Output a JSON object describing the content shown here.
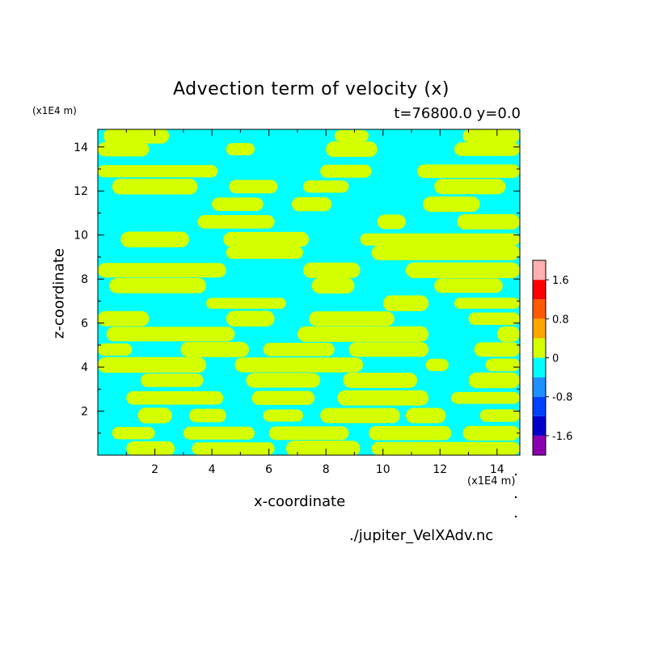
{
  "chart_data": {
    "type": "heatmap",
    "title": "Advection term of velocity (x)",
    "subtitle": "t=76800.0 y=0.0",
    "xlabel": "x-coordinate",
    "ylabel": "z-coordinate",
    "x_unit": "(x1E4 m)",
    "y_unit": "(x1E4 m)",
    "xlim": [
      0,
      14.8
    ],
    "ylim": [
      0,
      14.8
    ],
    "x_ticks": [
      "2",
      "4",
      "6",
      "8",
      "10",
      "12",
      "14"
    ],
    "y_ticks": [
      "2",
      "4",
      "6",
      "8",
      "10",
      "12",
      "14"
    ],
    "colorbar": {
      "levels": [
        -2.0,
        -1.6,
        -1.2,
        -0.8,
        -0.4,
        0,
        0.4,
        0.8,
        1.2,
        1.6,
        2.0
      ],
      "colors": [
        "#8a00b0",
        "#0000c8",
        "#0040ff",
        "#1e90ff",
        "#00ffff",
        "#d4ff00",
        "#ffa500",
        "#ff5a00",
        "#ff0000",
        "#ffb0b0"
      ],
      "labels": [
        "1.6",
        "0.8",
        "0",
        "-0.8",
        "-1.6"
      ]
    },
    "bands": [
      {
        "z": 14.5,
        "segments": [
          [
            0.2,
            2.5
          ],
          [
            8.3,
            9.5
          ],
          [
            12.8,
            14.8
          ]
        ]
      },
      {
        "z": 13.9,
        "segments": [
          [
            0.0,
            1.8
          ],
          [
            4.5,
            5.5
          ],
          [
            8.0,
            9.8
          ],
          [
            12.5,
            14.8
          ]
        ]
      },
      {
        "z": 12.9,
        "segments": [
          [
            0.0,
            4.2
          ],
          [
            7.8,
            9.6
          ],
          [
            11.2,
            14.8
          ]
        ]
      },
      {
        "z": 12.2,
        "segments": [
          [
            0.5,
            3.5
          ],
          [
            4.6,
            6.3
          ],
          [
            7.2,
            8.8
          ],
          [
            11.8,
            14.3
          ]
        ]
      },
      {
        "z": 11.4,
        "segments": [
          [
            4.0,
            5.8
          ],
          [
            6.8,
            8.2
          ],
          [
            11.4,
            13.4
          ]
        ]
      },
      {
        "z": 10.6,
        "segments": [
          [
            3.5,
            6.2
          ],
          [
            9.8,
            10.8
          ],
          [
            12.6,
            14.8
          ]
        ]
      },
      {
        "z": 9.8,
        "segments": [
          [
            0.8,
            3.2
          ],
          [
            4.4,
            7.4
          ],
          [
            9.2,
            14.8
          ]
        ]
      },
      {
        "z": 9.2,
        "segments": [
          [
            4.5,
            7.2
          ],
          [
            9.6,
            14.8
          ]
        ]
      },
      {
        "z": 8.4,
        "segments": [
          [
            0.0,
            4.5
          ],
          [
            7.2,
            9.2
          ],
          [
            10.8,
            14.8
          ]
        ]
      },
      {
        "z": 7.7,
        "segments": [
          [
            0.4,
            3.8
          ],
          [
            7.5,
            9.0
          ],
          [
            11.8,
            14.2
          ]
        ]
      },
      {
        "z": 6.9,
        "segments": [
          [
            3.8,
            6.6
          ],
          [
            10.0,
            11.6
          ],
          [
            12.5,
            14.8
          ]
        ]
      },
      {
        "z": 6.2,
        "segments": [
          [
            0.0,
            1.8
          ],
          [
            4.5,
            6.2
          ],
          [
            7.4,
            10.4
          ],
          [
            13.0,
            14.8
          ]
        ]
      },
      {
        "z": 5.5,
        "segments": [
          [
            0.3,
            4.8
          ],
          [
            7.0,
            11.6
          ],
          [
            14.0,
            14.8
          ]
        ]
      },
      {
        "z": 4.8,
        "segments": [
          [
            0.0,
            1.2
          ],
          [
            2.9,
            5.3
          ],
          [
            5.8,
            8.3
          ],
          [
            8.8,
            11.6
          ],
          [
            13.2,
            14.8
          ]
        ]
      },
      {
        "z": 4.1,
        "segments": [
          [
            0.0,
            3.8
          ],
          [
            4.8,
            9.3
          ],
          [
            11.5,
            12.3
          ],
          [
            13.6,
            14.8
          ]
        ]
      },
      {
        "z": 3.4,
        "segments": [
          [
            1.5,
            3.7
          ],
          [
            5.2,
            7.8
          ],
          [
            8.6,
            11.2
          ],
          [
            13.0,
            14.8
          ]
        ]
      },
      {
        "z": 2.6,
        "segments": [
          [
            1.0,
            4.4
          ],
          [
            5.4,
            7.6
          ],
          [
            8.4,
            11.6
          ],
          [
            12.4,
            14.8
          ]
        ]
      },
      {
        "z": 1.8,
        "segments": [
          [
            1.4,
            2.6
          ],
          [
            3.2,
            4.5
          ],
          [
            5.8,
            7.2
          ],
          [
            7.8,
            10.6
          ],
          [
            10.8,
            12.2
          ],
          [
            13.4,
            14.8
          ]
        ]
      },
      {
        "z": 1.0,
        "segments": [
          [
            0.5,
            2.0
          ],
          [
            3.0,
            5.5
          ],
          [
            6.0,
            8.8
          ],
          [
            9.5,
            12.4
          ],
          [
            12.8,
            14.8
          ]
        ]
      },
      {
        "z": 0.3,
        "segments": [
          [
            1.0,
            2.7
          ],
          [
            3.3,
            6.2
          ],
          [
            6.6,
            9.2
          ],
          [
            9.6,
            14.8
          ]
        ]
      }
    ]
  },
  "source_file": "./jupiter_VelXAdv.nc"
}
